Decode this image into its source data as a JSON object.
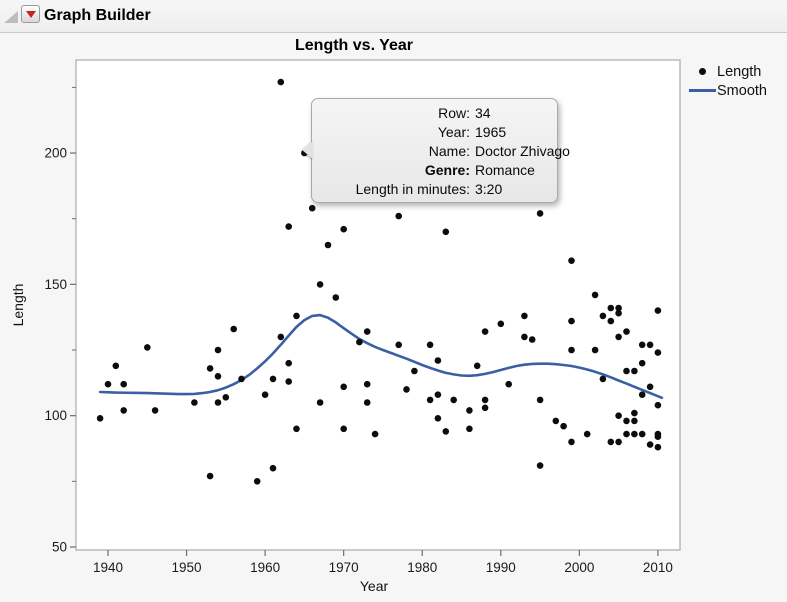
{
  "window": {
    "title": "Graph Builder"
  },
  "chart": {
    "title": "Length vs. Year",
    "x_label": "Year",
    "y_label": "Length",
    "legend": [
      {
        "marker": "dot",
        "label": "Length"
      },
      {
        "marker": "line",
        "label": "Smooth"
      }
    ],
    "colors": {
      "point": "#0c0c0c",
      "smooth_line": "#3a5fa5",
      "plot_border": "#a9a9a9",
      "tick": "#6e6e6e",
      "tick_label": "#1a1a1a",
      "plot_background": "#ffffff"
    }
  },
  "tooltip": {
    "rows": [
      {
        "label": "Row:",
        "value": "34"
      },
      {
        "label": "Year:",
        "value": "1965"
      },
      {
        "label": "Name:",
        "value": "Doctor Zhivago"
      },
      {
        "label": "Genre:",
        "value": "Romance"
      },
      {
        "label": "Length in minutes:",
        "value": "3:20"
      }
    ],
    "anchor_point": {
      "year": 1965,
      "length": 200
    }
  },
  "chart_data": {
    "type": "scatter",
    "title": "Length vs. Year",
    "xlabel": "Year",
    "ylabel": "Length",
    "xlim": [
      1935.93,
      2012.81
    ],
    "ylim": [
      48.86,
      235.42
    ],
    "x_ticks": [
      1940,
      1950,
      1960,
      1970,
      1980,
      1990,
      2000,
      2010
    ],
    "y_ticks": [
      50,
      100,
      150,
      200
    ],
    "y_minor_ticks": [
      75,
      125,
      175,
      225
    ],
    "grid": false,
    "legend_position": "right-top",
    "series": [
      {
        "name": "Length",
        "type": "scatter",
        "points": [
          [
            1939,
            99
          ],
          [
            1940,
            112
          ],
          [
            1941,
            119
          ],
          [
            1942,
            112
          ],
          [
            1942,
            102
          ],
          [
            1945,
            126
          ],
          [
            1946,
            102
          ],
          [
            1951,
            105
          ],
          [
            1953,
            118
          ],
          [
            1953,
            77
          ],
          [
            1954,
            125
          ],
          [
            1954,
            115
          ],
          [
            1954,
            105
          ],
          [
            1955,
            107
          ],
          [
            1956,
            133
          ],
          [
            1957,
            114
          ],
          [
            1959,
            75
          ],
          [
            1960,
            108
          ],
          [
            1961,
            114
          ],
          [
            1961,
            80
          ],
          [
            1962,
            130
          ],
          [
            1962,
            227
          ],
          [
            1963,
            172
          ],
          [
            1963,
            120
          ],
          [
            1963,
            113
          ],
          [
            1964,
            138
          ],
          [
            1964,
            95
          ],
          [
            1965,
            200
          ],
          [
            1966,
            179
          ],
          [
            1967,
            150
          ],
          [
            1967,
            105
          ],
          [
            1968,
            165
          ],
          [
            1969,
            145
          ],
          [
            1970,
            171
          ],
          [
            1970,
            111
          ],
          [
            1970,
            95
          ],
          [
            1972,
            128
          ],
          [
            1973,
            132
          ],
          [
            1973,
            112
          ],
          [
            1973,
            105
          ],
          [
            1974,
            93
          ],
          [
            1977,
            176
          ],
          [
            1977,
            127
          ],
          [
            1978,
            110
          ],
          [
            1979,
            117
          ],
          [
            1981,
            127
          ],
          [
            1981,
            106
          ],
          [
            1982,
            121
          ],
          [
            1982,
            108
          ],
          [
            1982,
            99
          ],
          [
            1983,
            170
          ],
          [
            1983,
            94
          ],
          [
            1984,
            106
          ],
          [
            1986,
            102
          ],
          [
            1986,
            95
          ],
          [
            1987,
            119
          ],
          [
            1988,
            132
          ],
          [
            1988,
            106
          ],
          [
            1988,
            103
          ],
          [
            1990,
            135
          ],
          [
            1991,
            112
          ],
          [
            1993,
            138
          ],
          [
            1993,
            130
          ],
          [
            1994,
            129
          ],
          [
            1995,
            177
          ],
          [
            1995,
            106
          ],
          [
            1995,
            81
          ],
          [
            1997,
            98
          ],
          [
            1998,
            96
          ],
          [
            1999,
            159
          ],
          [
            1999,
            136
          ],
          [
            1999,
            125
          ],
          [
            1999,
            90
          ],
          [
            2001,
            93
          ],
          [
            2002,
            146
          ],
          [
            2002,
            125
          ],
          [
            2003,
            138
          ],
          [
            2003,
            114
          ],
          [
            2004,
            141
          ],
          [
            2004,
            136
          ],
          [
            2004,
            90
          ],
          [
            2005,
            141
          ],
          [
            2005,
            139
          ],
          [
            2005,
            130
          ],
          [
            2005,
            100
          ],
          [
            2005,
            90
          ],
          [
            2006,
            132
          ],
          [
            2006,
            117
          ],
          [
            2006,
            98
          ],
          [
            2006,
            93
          ],
          [
            2007,
            117
          ],
          [
            2007,
            101
          ],
          [
            2007,
            98
          ],
          [
            2007,
            93
          ],
          [
            2008,
            127
          ],
          [
            2008,
            120
          ],
          [
            2008,
            108
          ],
          [
            2008,
            93
          ],
          [
            2009,
            127
          ],
          [
            2009,
            111
          ],
          [
            2009,
            89
          ],
          [
            2010,
            140
          ],
          [
            2010,
            124
          ],
          [
            2010,
            104
          ],
          [
            2010,
            93
          ],
          [
            2010,
            92
          ],
          [
            2010,
            88
          ]
        ]
      },
      {
        "name": "Smooth",
        "type": "line",
        "points": [
          [
            1939,
            109
          ],
          [
            1941,
            108.8
          ],
          [
            1943,
            108.7
          ],
          [
            1945,
            108.6
          ],
          [
            1947,
            108.4
          ],
          [
            1949,
            108.2
          ],
          [
            1950,
            108.2
          ],
          [
            1951,
            108.3
          ],
          [
            1952,
            108.6
          ],
          [
            1953,
            109
          ],
          [
            1954,
            109.7
          ],
          [
            1955,
            110.7
          ],
          [
            1956,
            112
          ],
          [
            1957,
            113.6
          ],
          [
            1958,
            115.6
          ],
          [
            1959,
            118
          ],
          [
            1960,
            120.7
          ],
          [
            1961,
            123.7
          ],
          [
            1962,
            127
          ],
          [
            1963,
            130.5
          ],
          [
            1964,
            133.8
          ],
          [
            1965,
            136.4
          ],
          [
            1966,
            138
          ],
          [
            1967,
            138.3
          ],
          [
            1968,
            137.3
          ],
          [
            1969,
            135.5
          ],
          [
            1970,
            133.3
          ],
          [
            1971,
            131.2
          ],
          [
            1972,
            129.2
          ],
          [
            1973,
            127.6
          ],
          [
            1974,
            126.2
          ],
          [
            1975,
            125
          ],
          [
            1976,
            123.9
          ],
          [
            1977,
            122.8
          ],
          [
            1978,
            121.7
          ],
          [
            1979,
            120.5
          ],
          [
            1980,
            119.3
          ],
          [
            1981,
            118.2
          ],
          [
            1982,
            117.2
          ],
          [
            1983,
            116.3
          ],
          [
            1984,
            115.7
          ],
          [
            1985,
            115.3
          ],
          [
            1986,
            115.2
          ],
          [
            1987,
            115.4
          ],
          [
            1988,
            115.9
          ],
          [
            1989,
            116.6
          ],
          [
            1990,
            117.4
          ],
          [
            1991,
            118.2
          ],
          [
            1992,
            118.9
          ],
          [
            1993,
            119.4
          ],
          [
            1994,
            119.7
          ],
          [
            1995,
            119.8
          ],
          [
            1996,
            119.8
          ],
          [
            1997,
            119.6
          ],
          [
            1998,
            119.3
          ],
          [
            1999,
            118.9
          ],
          [
            2000,
            118.3
          ],
          [
            2001,
            117.6
          ],
          [
            2002,
            116.7
          ],
          [
            2003,
            115.7
          ],
          [
            2004,
            114.6
          ],
          [
            2005,
            113.4
          ],
          [
            2006,
            112.2
          ],
          [
            2007,
            111
          ],
          [
            2008,
            109.8
          ],
          [
            2009,
            108.6
          ],
          [
            2010,
            107.4
          ],
          [
            2010.5,
            106.8
          ]
        ]
      }
    ]
  }
}
